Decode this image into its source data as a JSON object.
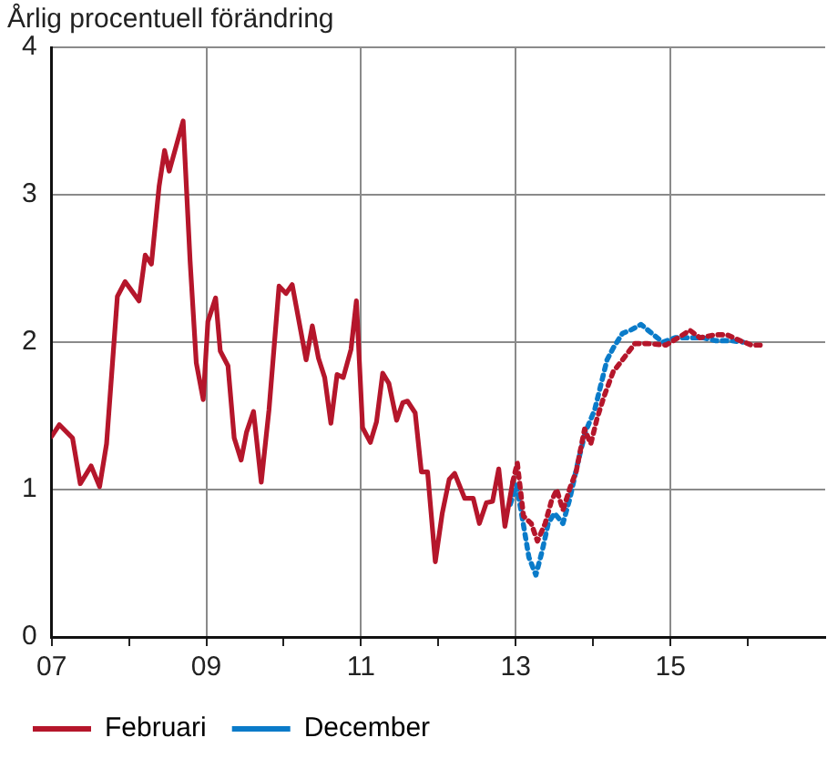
{
  "chart_data": {
    "type": "line",
    "title": "Årlig procentuell förändring",
    "xlim": [
      2007,
      2017
    ],
    "xticks": [
      {
        "value": 2007,
        "label": "07"
      },
      {
        "value": 2008,
        "label": null
      },
      {
        "value": 2009,
        "label": "09"
      },
      {
        "value": 2010,
        "label": null
      },
      {
        "value": 2011,
        "label": "11"
      },
      {
        "value": 2012,
        "label": null
      },
      {
        "value": 2013,
        "label": "13"
      },
      {
        "value": 2014,
        "label": null
      },
      {
        "value": 2015,
        "label": "15"
      },
      {
        "value": 2016,
        "label": null
      }
    ],
    "ylim": [
      0,
      4
    ],
    "yticks": [
      0,
      1,
      2,
      3,
      4
    ],
    "grid": true,
    "legend": "bottom left",
    "marker": "none",
    "series": [
      {
        "name": "Februari",
        "color": "#b5162b",
        "line_style": "solid",
        "x": [
          2007.0,
          2007.1,
          2007.27,
          2007.37,
          2007.51,
          2007.62,
          2007.71,
          2007.85,
          2007.95,
          2008.13,
          2008.21,
          2008.29,
          2008.39,
          2008.46,
          2008.52,
          2008.7,
          2008.79,
          2008.87,
          2008.96,
          2009.02,
          2009.12,
          2009.18,
          2009.28,
          2009.36,
          2009.45,
          2009.52,
          2009.61,
          2009.71,
          2009.81,
          2009.94,
          2010.03,
          2010.11,
          2010.29,
          2010.37,
          2010.45,
          2010.53,
          2010.61,
          2010.69,
          2010.77,
          2010.87,
          2010.94,
          2011.02,
          2011.12,
          2011.2,
          2011.28,
          2011.36,
          2011.46,
          2011.54,
          2011.6,
          2011.7,
          2011.78,
          2011.86,
          2011.96,
          2012.05,
          2012.14,
          2012.21,
          2012.34,
          2012.45,
          2012.53,
          2012.62,
          2012.7,
          2012.78,
          2012.86,
          2012.96
        ],
        "values": [
          1.36,
          1.44,
          1.35,
          1.04,
          1.16,
          1.02,
          1.31,
          2.31,
          2.41,
          2.28,
          2.59,
          2.53,
          3.06,
          3.3,
          3.16,
          3.5,
          2.55,
          1.86,
          1.61,
          2.14,
          2.3,
          1.94,
          1.84,
          1.35,
          1.2,
          1.39,
          1.53,
          1.05,
          1.54,
          2.38,
          2.33,
          2.39,
          1.88,
          2.11,
          1.89,
          1.76,
          1.45,
          1.78,
          1.76,
          1.95,
          2.28,
          1.42,
          1.32,
          1.46,
          1.79,
          1.72,
          1.47,
          1.59,
          1.6,
          1.52,
          1.12,
          1.12,
          0.51,
          0.84,
          1.07,
          1.11,
          0.94,
          0.94,
          0.77,
          0.91,
          0.92,
          1.14,
          0.75,
          1.05
        ]
      },
      {
        "color": "#b5162b",
        "line_style": "dotted",
        "x": [
          2012.96,
          2013.02,
          2013.1,
          2013.2,
          2013.28,
          2013.38,
          2013.46,
          2013.53,
          2013.61,
          2013.7,
          2013.78,
          2013.89,
          2013.97,
          2014.05,
          2014.14,
          2014.26,
          2014.38,
          2014.54,
          2014.7,
          2014.94,
          2015.1,
          2015.25,
          2015.38,
          2015.58,
          2015.73,
          2015.9,
          2016.05,
          2016.16
        ],
        "values": [
          1.05,
          1.18,
          0.82,
          0.77,
          0.65,
          0.77,
          0.92,
          1.0,
          0.86,
          1.01,
          1.12,
          1.41,
          1.31,
          1.48,
          1.63,
          1.8,
          1.88,
          1.99,
          1.99,
          1.98,
          2.03,
          2.08,
          2.03,
          2.05,
          2.05,
          2.01,
          1.98,
          1.98
        ]
      },
      {
        "name": "December",
        "color": "#0a7bc9",
        "line_style": "dotted",
        "x": [
          2012.93,
          2013.01,
          2013.09,
          2013.17,
          2013.26,
          2013.34,
          2013.42,
          2013.5,
          2013.61,
          2013.7,
          2013.81,
          2013.9,
          2014.02,
          2014.1,
          2014.18,
          2014.26,
          2014.38,
          2014.48,
          2014.62,
          2014.78,
          2014.9,
          2015.06,
          2015.22,
          2015.42,
          2015.58,
          2015.78,
          2015.94
        ],
        "values": [
          0.9,
          1.03,
          0.79,
          0.54,
          0.42,
          0.58,
          0.77,
          0.84,
          0.77,
          0.94,
          1.2,
          1.39,
          1.54,
          1.71,
          1.88,
          1.96,
          2.06,
          2.08,
          2.12,
          2.05,
          2.0,
          2.03,
          2.03,
          2.03,
          2.01,
          2.01,
          2.0
        ]
      }
    ]
  }
}
